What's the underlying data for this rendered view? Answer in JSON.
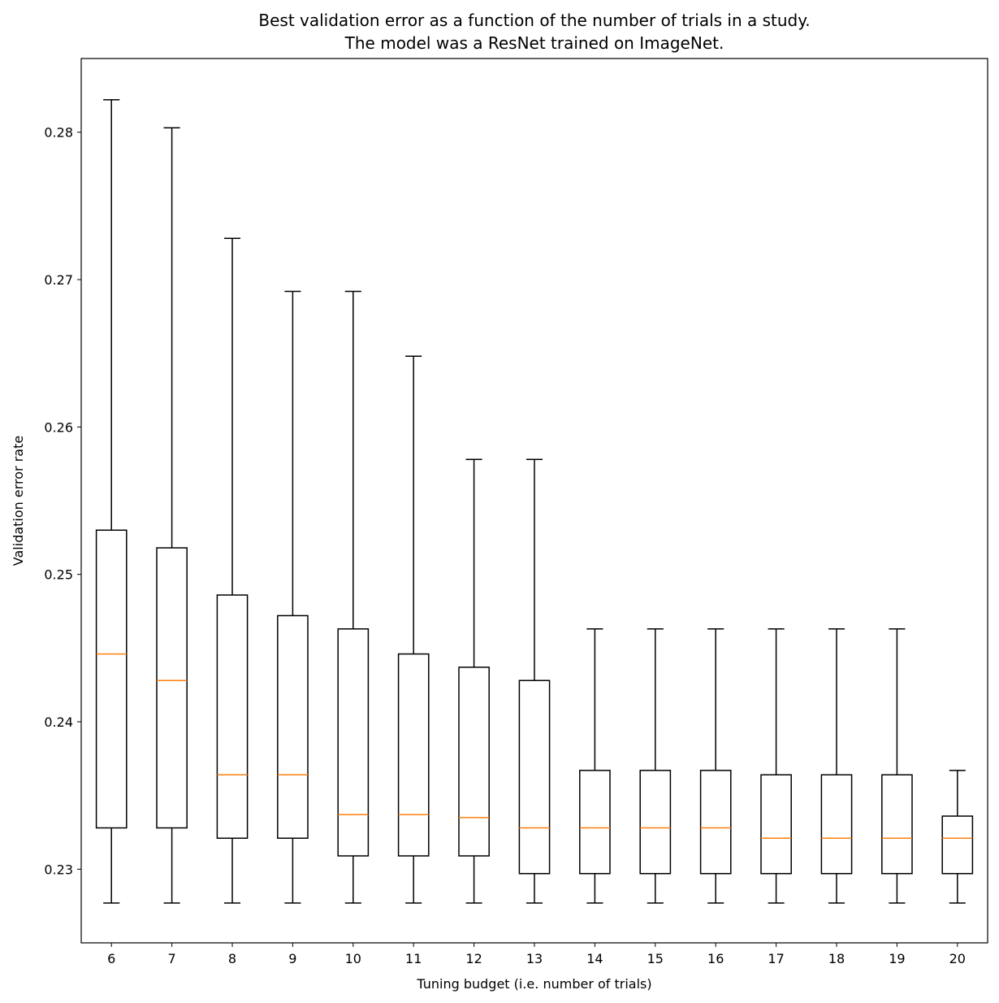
{
  "chart_data": {
    "type": "box",
    "title": [
      "Best validation error as a function of the number of trials in a study.",
      "The model was a ResNet trained on ImageNet."
    ],
    "xlabel": "Tuning budget (i.e. number of trials)",
    "ylabel": "Validation error rate",
    "xlim": [
      5.5,
      20.5
    ],
    "ylim": [
      0.225,
      0.285
    ],
    "yticks": [
      "0.23",
      "0.24",
      "0.25",
      "0.26",
      "0.27",
      "0.28"
    ],
    "categories": [
      "6",
      "7",
      "8",
      "9",
      "10",
      "11",
      "12",
      "13",
      "14",
      "15",
      "16",
      "17",
      "18",
      "19",
      "20"
    ],
    "grid": false,
    "box_color": "#000000",
    "median_color": "#ff7f0e",
    "boxes": [
      {
        "whisker_low": 0.2277,
        "q1": 0.2328,
        "median": 0.2446,
        "q3": 0.253,
        "whisker_high": 0.2822
      },
      {
        "whisker_low": 0.2277,
        "q1": 0.2328,
        "median": 0.2428,
        "q3": 0.2518,
        "whisker_high": 0.2803
      },
      {
        "whisker_low": 0.2277,
        "q1": 0.2321,
        "median": 0.2364,
        "q3": 0.2486,
        "whisker_high": 0.2728
      },
      {
        "whisker_low": 0.2277,
        "q1": 0.2321,
        "median": 0.2364,
        "q3": 0.2472,
        "whisker_high": 0.2692
      },
      {
        "whisker_low": 0.2277,
        "q1": 0.2309,
        "median": 0.2337,
        "q3": 0.2463,
        "whisker_high": 0.2692
      },
      {
        "whisker_low": 0.2277,
        "q1": 0.2309,
        "median": 0.2337,
        "q3": 0.2446,
        "whisker_high": 0.2648
      },
      {
        "whisker_low": 0.2277,
        "q1": 0.2309,
        "median": 0.2335,
        "q3": 0.2437,
        "whisker_high": 0.2578
      },
      {
        "whisker_low": 0.2277,
        "q1": 0.2297,
        "median": 0.2328,
        "q3": 0.2428,
        "whisker_high": 0.2578
      },
      {
        "whisker_low": 0.2277,
        "q1": 0.2297,
        "median": 0.2328,
        "q3": 0.2367,
        "whisker_high": 0.2463
      },
      {
        "whisker_low": 0.2277,
        "q1": 0.2297,
        "median": 0.2328,
        "q3": 0.2367,
        "whisker_high": 0.2463
      },
      {
        "whisker_low": 0.2277,
        "q1": 0.2297,
        "median": 0.2328,
        "q3": 0.2367,
        "whisker_high": 0.2463
      },
      {
        "whisker_low": 0.2277,
        "q1": 0.2297,
        "median": 0.2321,
        "q3": 0.2364,
        "whisker_high": 0.2463
      },
      {
        "whisker_low": 0.2277,
        "q1": 0.2297,
        "median": 0.2321,
        "q3": 0.2364,
        "whisker_high": 0.2463
      },
      {
        "whisker_low": 0.2277,
        "q1": 0.2297,
        "median": 0.2321,
        "q3": 0.2364,
        "whisker_high": 0.2463
      },
      {
        "whisker_low": 0.2277,
        "q1": 0.2297,
        "median": 0.2321,
        "q3": 0.2336,
        "whisker_high": 0.2367
      }
    ]
  }
}
